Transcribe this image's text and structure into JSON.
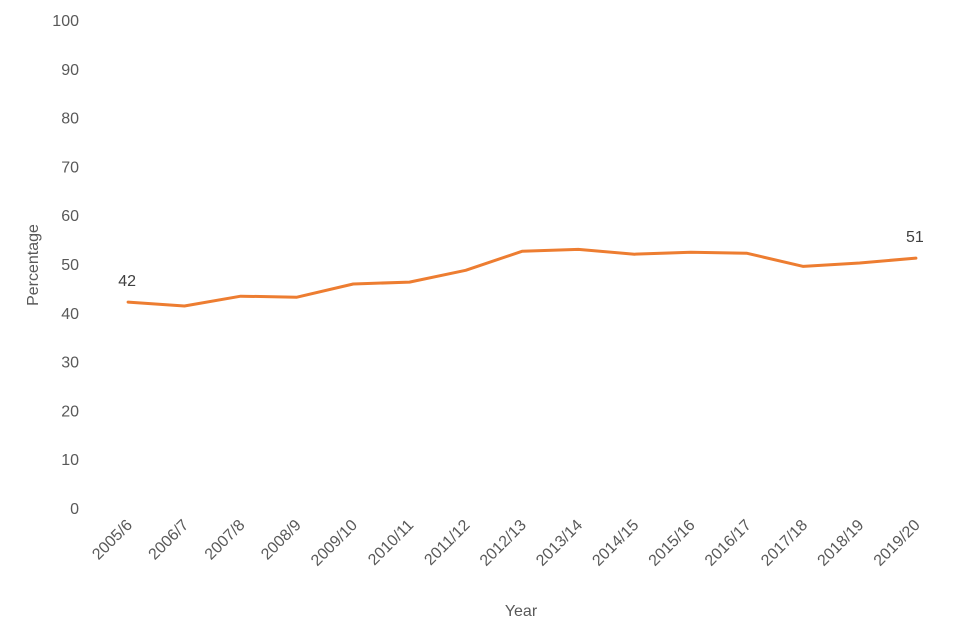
{
  "chart_data": {
    "type": "line",
    "title": "",
    "xlabel": "Year",
    "ylabel": "Percentage",
    "ylim": [
      0,
      100
    ],
    "yticks": [
      0,
      10,
      20,
      30,
      40,
      50,
      60,
      70,
      80,
      90,
      100
    ],
    "grid": false,
    "legend": "none",
    "categories": [
      "2005/6",
      "2006/7",
      "2007/8",
      "2008/9",
      "2009/10",
      "2010/11",
      "2011/12",
      "2012/13",
      "2013/14",
      "2014/15",
      "2015/16",
      "2016/17",
      "2017/18",
      "2018/19",
      "2019/20"
    ],
    "series": [
      {
        "color": "#ED7D31",
        "values": [
          42.2,
          41.4,
          43.4,
          43.2,
          45.9,
          46.3,
          48.7,
          52.6,
          53.0,
          52.0,
          52.4,
          52.2,
          49.5,
          50.2,
          51.2
        ]
      }
    ],
    "data_labels": [
      {
        "index": 0,
        "text": "42"
      },
      {
        "index": 14,
        "text": "51"
      }
    ]
  }
}
